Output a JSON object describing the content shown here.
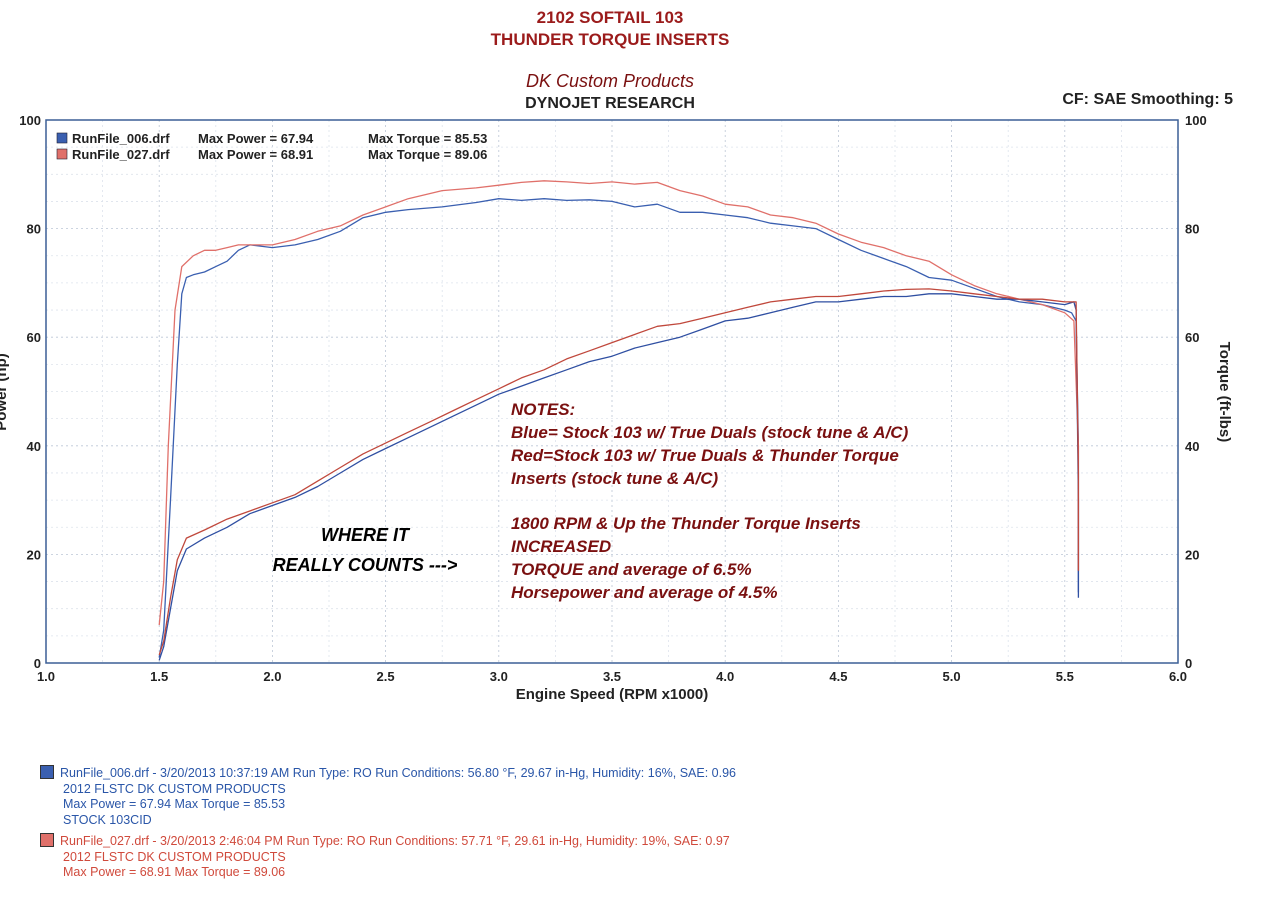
{
  "header": {
    "title_line1": "2102 SOFTAIL 103",
    "title_line2": "THUNDER TORQUE INSERTS",
    "company": "DK Custom Products",
    "dyno": "DYNOJET RESEARCH",
    "settings": "CF: SAE  Smoothing: 5"
  },
  "legend": [
    {
      "file": "RunFile_006.drf",
      "max_power_label": "Max Power = 67.94",
      "max_torque_label": "Max Torque = 85.53",
      "color": "#3a5fb0"
    },
    {
      "file": "RunFile_027.drf",
      "max_power_label": "Max Power = 68.91",
      "max_torque_label": "Max Torque = 89.06",
      "color": "#e0706a"
    }
  ],
  "notes": {
    "heading": "NOTES:",
    "line1": "Blue= Stock 103 w/ True Duals (stock tune & A/C)",
    "line2": "Red=Stock 103 w/ True Duals & Thunder Torque",
    "line3": "Inserts  (stock tune & A/C)",
    "line4": "1800 RPM & Up the Thunder Torque Inserts",
    "line5": "INCREASED",
    "line6": "TORQUE and average of 6.5%",
    "line7": "Horsepower and average of 4.5%"
  },
  "annotation": {
    "line1": "WHERE IT",
    "line2": "REALLY COUNTS --->"
  },
  "footer": {
    "run1": {
      "line1": "RunFile_006.drf - 3/20/2013 10:37:19 AM  Run Type: RO  Run Conditions: 56.80 °F, 29.67 in-Hg,  Humidity:  16%, SAE: 0.96",
      "line2": "2012 FLSTC DK CUSTOM PRODUCTS",
      "line3": "Max Power = 67.94  Max Torque = 85.53",
      "line4": "STOCK 103CID",
      "color": "#2a56a8"
    },
    "run2": {
      "line1": "RunFile_027.drf - 3/20/2013 2:46:04 PM  Run Type: RO  Run Conditions: 57.71 °F, 29.61 in-Hg,  Humidity:  19%, SAE: 0.97",
      "line2": "2012 FLSTC DK CUSTOM PRODUCTS",
      "line3": "Max Power = 68.91  Max Torque = 89.06",
      "color": "#d04a3c"
    }
  },
  "chart_data": {
    "type": "line",
    "xlabel": "Engine Speed (RPM x1000)",
    "ylabel_left": "Power (hp)",
    "ylabel_right": "Torque (ft-lbs)",
    "xlim": [
      1.0,
      6.0
    ],
    "ylim": [
      0,
      100
    ],
    "x_ticks": [
      "1.0",
      "1.5",
      "2.0",
      "2.5",
      "3.0",
      "3.5",
      "4.0",
      "4.5",
      "5.0",
      "5.5",
      "6.0"
    ],
    "y_ticks": [
      "0",
      "20",
      "40",
      "60",
      "80",
      "100"
    ],
    "grid": true,
    "series": [
      {
        "name": "RunFile_006.drf",
        "kind": "torque",
        "color": "#3a5fb0",
        "points": [
          [
            1.5,
            1
          ],
          [
            1.52,
            6
          ],
          [
            1.55,
            30
          ],
          [
            1.58,
            55
          ],
          [
            1.6,
            68
          ],
          [
            1.62,
            71
          ],
          [
            1.65,
            71.5
          ],
          [
            1.7,
            72
          ],
          [
            1.75,
            73
          ],
          [
            1.8,
            74
          ],
          [
            1.85,
            76
          ],
          [
            1.9,
            77
          ],
          [
            2.0,
            76.5
          ],
          [
            2.1,
            77
          ],
          [
            2.2,
            78
          ],
          [
            2.3,
            79.5
          ],
          [
            2.4,
            82
          ],
          [
            2.5,
            83
          ],
          [
            2.6,
            83.5
          ],
          [
            2.75,
            84
          ],
          [
            2.9,
            84.8
          ],
          [
            3.0,
            85.5
          ],
          [
            3.1,
            85.2
          ],
          [
            3.2,
            85.5
          ],
          [
            3.3,
            85.2
          ],
          [
            3.4,
            85.3
          ],
          [
            3.5,
            85
          ],
          [
            3.6,
            84
          ],
          [
            3.7,
            84.5
          ],
          [
            3.8,
            83
          ],
          [
            3.9,
            83
          ],
          [
            4.0,
            82.5
          ],
          [
            4.1,
            82
          ],
          [
            4.2,
            81
          ],
          [
            4.3,
            80.5
          ],
          [
            4.4,
            80
          ],
          [
            4.5,
            78
          ],
          [
            4.6,
            76
          ],
          [
            4.7,
            74.5
          ],
          [
            4.8,
            73
          ],
          [
            4.9,
            71
          ],
          [
            5.0,
            70.5
          ],
          [
            5.1,
            69
          ],
          [
            5.2,
            67.5
          ],
          [
            5.3,
            66.5
          ],
          [
            5.4,
            66
          ],
          [
            5.5,
            65
          ],
          [
            5.53,
            64.5
          ],
          [
            5.55,
            63
          ],
          [
            5.56,
            40
          ],
          [
            5.56,
            13
          ]
        ]
      },
      {
        "name": "RunFile_027.drf",
        "kind": "torque",
        "color": "#e0706a",
        "points": [
          [
            1.5,
            7
          ],
          [
            1.52,
            15
          ],
          [
            1.54,
            40
          ],
          [
            1.57,
            65
          ],
          [
            1.6,
            73
          ],
          [
            1.65,
            75
          ],
          [
            1.7,
            76
          ],
          [
            1.75,
            76
          ],
          [
            1.8,
            76.5
          ],
          [
            1.85,
            77
          ],
          [
            1.9,
            77
          ],
          [
            2.0,
            77
          ],
          [
            2.1,
            78
          ],
          [
            2.2,
            79.5
          ],
          [
            2.3,
            80.5
          ],
          [
            2.4,
            82.5
          ],
          [
            2.5,
            84
          ],
          [
            2.6,
            85.5
          ],
          [
            2.75,
            87
          ],
          [
            2.9,
            87.5
          ],
          [
            3.0,
            88
          ],
          [
            3.1,
            88.5
          ],
          [
            3.2,
            88.8
          ],
          [
            3.3,
            88.6
          ],
          [
            3.4,
            88.3
          ],
          [
            3.5,
            88.6
          ],
          [
            3.6,
            88.2
          ],
          [
            3.7,
            88.5
          ],
          [
            3.8,
            87
          ],
          [
            3.9,
            86
          ],
          [
            4.0,
            84.5
          ],
          [
            4.1,
            84
          ],
          [
            4.2,
            82.5
          ],
          [
            4.3,
            82
          ],
          [
            4.4,
            81
          ],
          [
            4.5,
            79
          ],
          [
            4.6,
            77.5
          ],
          [
            4.7,
            76.5
          ],
          [
            4.8,
            75
          ],
          [
            4.9,
            74
          ],
          [
            5.0,
            71.5
          ],
          [
            5.1,
            69.5
          ],
          [
            5.2,
            68
          ],
          [
            5.3,
            67
          ],
          [
            5.4,
            66
          ],
          [
            5.5,
            64.5
          ],
          [
            5.54,
            63
          ],
          [
            5.56,
            40
          ],
          [
            5.56,
            17
          ]
        ]
      },
      {
        "name": "RunFile_006.drf",
        "kind": "power",
        "color": "#2f4fa2",
        "points": [
          [
            1.5,
            0.5
          ],
          [
            1.52,
            3
          ],
          [
            1.55,
            10
          ],
          [
            1.58,
            17
          ],
          [
            1.62,
            21
          ],
          [
            1.7,
            23
          ],
          [
            1.8,
            25
          ],
          [
            1.9,
            27.5
          ],
          [
            2.0,
            29
          ],
          [
            2.1,
            30.5
          ],
          [
            2.2,
            32.5
          ],
          [
            2.3,
            35
          ],
          [
            2.4,
            37.5
          ],
          [
            2.5,
            39.5
          ],
          [
            2.6,
            41.5
          ],
          [
            2.7,
            43.5
          ],
          [
            2.8,
            45.5
          ],
          [
            2.9,
            47.5
          ],
          [
            3.0,
            49.5
          ],
          [
            3.1,
            51
          ],
          [
            3.2,
            52.5
          ],
          [
            3.3,
            54
          ],
          [
            3.4,
            55.5
          ],
          [
            3.5,
            56.5
          ],
          [
            3.6,
            58
          ],
          [
            3.7,
            59
          ],
          [
            3.8,
            60
          ],
          [
            3.9,
            61.5
          ],
          [
            4.0,
            63
          ],
          [
            4.1,
            63.5
          ],
          [
            4.2,
            64.5
          ],
          [
            4.3,
            65.5
          ],
          [
            4.4,
            66.5
          ],
          [
            4.5,
            66.5
          ],
          [
            4.6,
            67
          ],
          [
            4.7,
            67.5
          ],
          [
            4.8,
            67.5
          ],
          [
            4.9,
            68
          ],
          [
            5.0,
            68
          ],
          [
            5.1,
            67.5
          ],
          [
            5.2,
            67
          ],
          [
            5.3,
            67
          ],
          [
            5.4,
            66.5
          ],
          [
            5.5,
            66
          ],
          [
            5.54,
            66.5
          ],
          [
            5.55,
            65
          ],
          [
            5.56,
            30
          ],
          [
            5.56,
            12
          ]
        ]
      },
      {
        "name": "RunFile_027.drf",
        "kind": "power",
        "color": "#c0483c",
        "points": [
          [
            1.5,
            1.5
          ],
          [
            1.52,
            4
          ],
          [
            1.55,
            12
          ],
          [
            1.58,
            19
          ],
          [
            1.62,
            23
          ],
          [
            1.7,
            24.5
          ],
          [
            1.8,
            26.5
          ],
          [
            1.9,
            28
          ],
          [
            2.0,
            29.5
          ],
          [
            2.1,
            31
          ],
          [
            2.2,
            33.5
          ],
          [
            2.3,
            36
          ],
          [
            2.4,
            38.5
          ],
          [
            2.5,
            40.5
          ],
          [
            2.6,
            42.5
          ],
          [
            2.7,
            44.5
          ],
          [
            2.8,
            46.5
          ],
          [
            2.9,
            48.5
          ],
          [
            3.0,
            50.5
          ],
          [
            3.1,
            52.5
          ],
          [
            3.2,
            54
          ],
          [
            3.3,
            56
          ],
          [
            3.4,
            57.5
          ],
          [
            3.5,
            59
          ],
          [
            3.6,
            60.5
          ],
          [
            3.7,
            62
          ],
          [
            3.8,
            62.5
          ],
          [
            3.9,
            63.5
          ],
          [
            4.0,
            64.5
          ],
          [
            4.1,
            65.5
          ],
          [
            4.2,
            66.5
          ],
          [
            4.3,
            67
          ],
          [
            4.4,
            67.5
          ],
          [
            4.5,
            67.5
          ],
          [
            4.6,
            68
          ],
          [
            4.7,
            68.5
          ],
          [
            4.8,
            68.8
          ],
          [
            4.9,
            68.9
          ],
          [
            5.0,
            68.5
          ],
          [
            5.1,
            68
          ],
          [
            5.2,
            67.5
          ],
          [
            5.3,
            67
          ],
          [
            5.4,
            67
          ],
          [
            5.5,
            66.5
          ],
          [
            5.55,
            66.5
          ],
          [
            5.56,
            35
          ],
          [
            5.56,
            17
          ]
        ]
      }
    ]
  }
}
